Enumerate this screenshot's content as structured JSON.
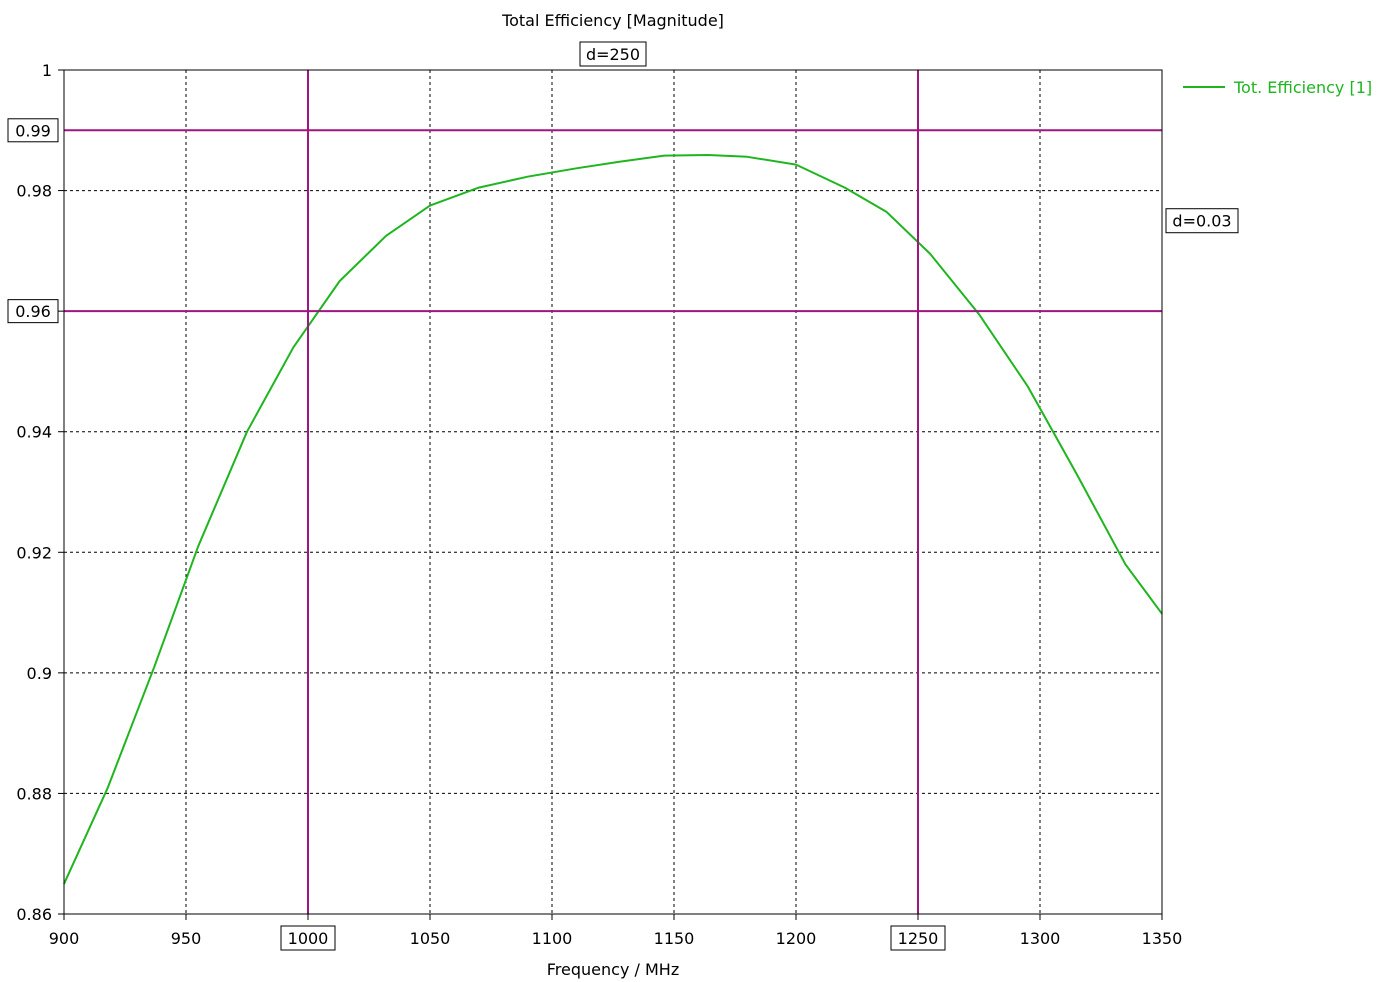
{
  "chart_data": {
    "type": "line",
    "title": "Total Efficiency [Magnitude]",
    "xlabel": "Frequency / MHz",
    "ylabel": "",
    "xlim": [
      900,
      1350
    ],
    "ylim": [
      0.86,
      1
    ],
    "x_ticks": [
      900,
      950,
      1000,
      1050,
      1100,
      1150,
      1200,
      1250,
      1300,
      1350
    ],
    "y_ticks": [
      0.86,
      0.88,
      0.9,
      0.92,
      0.94,
      0.96,
      0.98,
      1
    ],
    "grid": true,
    "legend_position": "top-right",
    "series": [
      {
        "name": "Tot. Efficiency [1]",
        "color": "#1fb51f",
        "x": [
          900,
          918,
          937,
          955,
          975,
          994,
          1013,
          1032,
          1050,
          1070,
          1090,
          1110,
          1128,
          1146,
          1164,
          1180,
          1200,
          1220,
          1237,
          1255,
          1275,
          1295,
          1315,
          1335,
          1350
        ],
        "y": [
          0.865,
          0.881,
          0.901,
          0.921,
          0.94,
          0.954,
          0.965,
          0.9725,
          0.9775,
          0.9805,
          0.9823,
          0.9837,
          0.9848,
          0.9858,
          0.9859,
          0.9856,
          0.9843,
          0.9805,
          0.9765,
          0.9695,
          0.9595,
          0.9475,
          0.933,
          0.918,
          0.9098
        ]
      }
    ],
    "markers": {
      "color": "#a0157f",
      "vertical": [
        {
          "value": 1000,
          "label": "1000"
        },
        {
          "value": 1250,
          "label": "1250"
        }
      ],
      "horizontal": [
        {
          "value": 0.99,
          "label": "0.99"
        },
        {
          "value": 0.96,
          "label": "0.96"
        }
      ],
      "x_delta_label": "d=250",
      "y_delta_label": "d=0.03"
    }
  }
}
